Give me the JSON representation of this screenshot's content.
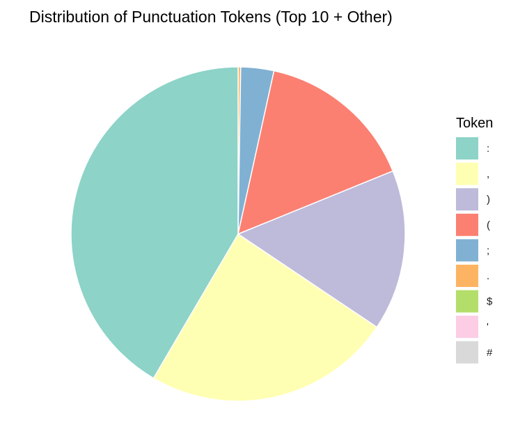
{
  "chart_data": {
    "type": "pie",
    "title": "Distribution of Punctuation Tokens (Top 10 + Other)",
    "legend_title": "Token",
    "legend_position": "right",
    "start": "12 o'clock",
    "direction": "clockwise",
    "slices": [
      {
        "label": ".",
        "value": 0.25,
        "color": "#FDB462"
      },
      {
        "label": ";",
        "value": 3.2,
        "color": "#80B1D3"
      },
      {
        "label": "(",
        "value": 15.4,
        "color": "#FB8072"
      },
      {
        "label": ")",
        "value": 15.55,
        "color": "#BEBADA"
      },
      {
        "label": ",",
        "value": 24.05,
        "color": "#FFFFB3"
      },
      {
        "label": ":",
        "value": 41.55,
        "color": "#8DD3C7"
      },
      {
        "label": "$",
        "value": 0.0,
        "color": "#B3DE69"
      },
      {
        "label": "'",
        "value": 0.0,
        "color": "#FCCDE5"
      },
      {
        "label": "#",
        "value": 0.0,
        "color": "#D9D9D9"
      }
    ],
    "legend_order": [
      ":",
      ",",
      ")",
      "(",
      ";",
      ".",
      "$",
      "'",
      "#"
    ]
  }
}
